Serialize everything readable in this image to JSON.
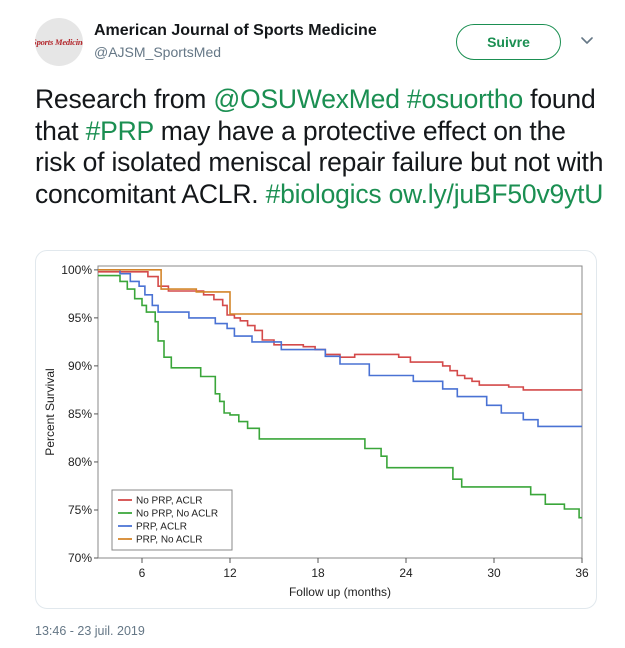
{
  "account": {
    "name": "American Journal of Sports Medicine",
    "handle": "@AJSM_SportsMed",
    "avatar_text": "Sports Medicine"
  },
  "follow_label": "Suivre",
  "tweet": {
    "t1": "Research from ",
    "l1": "@OSUWexMed",
    "t2": " ",
    "l2": "#osuortho",
    "t3": " found that ",
    "l3": "#PRP",
    "t4": " may have a protective effect on the risk of isolated meniscal repair failure but not with concomitant ACLR. ",
    "l4": "#biologics",
    "t5": " ",
    "l5": "ow.ly/juBF50v9ytU"
  },
  "timestamp": "13:46 - 23 juil. 2019",
  "colors": {
    "accent": "#1b8f52"
  },
  "chart_data": {
    "type": "line",
    "xlabel": "Follow up (months)",
    "ylabel": "Percent Survival",
    "xlim": [
      3,
      36
    ],
    "ylim": [
      70,
      100.4
    ],
    "xticks": [
      6,
      12,
      18,
      24,
      30,
      36
    ],
    "xtick_labels": [
      "6",
      "12",
      "18",
      "24",
      "30",
      "36"
    ],
    "yticks": [
      70,
      75,
      80,
      85,
      90,
      95,
      100
    ],
    "ytick_labels": [
      "70%",
      "75%",
      "80%",
      "85%",
      "90%",
      "95%",
      "100%"
    ],
    "legend_position": "bottom-left",
    "series": [
      {
        "name": "No PRP, ACLR",
        "color": "#d44a4a",
        "step_points": [
          [
            3,
            99.8
          ],
          [
            5.5,
            99.8
          ],
          [
            6.4,
            99.3
          ],
          [
            7.1,
            98.3
          ],
          [
            7.8,
            97.8
          ],
          [
            10.2,
            97.4
          ],
          [
            10.9,
            96.9
          ],
          [
            11.5,
            96.3
          ],
          [
            11.8,
            95.3
          ],
          [
            12.3,
            95.0
          ],
          [
            12.7,
            94.7
          ],
          [
            13.2,
            94.2
          ],
          [
            13.7,
            93.7
          ],
          [
            14.2,
            92.7
          ],
          [
            15.0,
            92.2
          ],
          [
            17.0,
            92.0
          ],
          [
            17.8,
            91.7
          ],
          [
            18.5,
            91.2
          ],
          [
            19.5,
            90.9
          ],
          [
            20.5,
            91.2
          ],
          [
            23.5,
            90.9
          ],
          [
            24.3,
            90.4
          ],
          [
            26.5,
            90.0
          ],
          [
            27.0,
            89.5
          ],
          [
            27.5,
            89.0
          ],
          [
            28.0,
            88.7
          ],
          [
            28.5,
            88.4
          ],
          [
            29.0,
            88.0
          ],
          [
            31.0,
            87.8
          ],
          [
            32.0,
            87.5
          ],
          [
            36,
            87.5
          ]
        ]
      },
      {
        "name": "No PRP, No ACLR",
        "color": "#3aa63a",
        "step_points": [
          [
            3,
            99.4
          ],
          [
            4.5,
            98.8
          ],
          [
            5.0,
            98.0
          ],
          [
            5.5,
            97.0
          ],
          [
            6.0,
            96.3
          ],
          [
            6.3,
            95.6
          ],
          [
            6.9,
            94.6
          ],
          [
            7.1,
            92.6
          ],
          [
            7.5,
            90.9
          ],
          [
            8.0,
            89.8
          ],
          [
            10.0,
            88.9
          ],
          [
            11.0,
            87.1
          ],
          [
            11.3,
            86.3
          ],
          [
            11.6,
            85.1
          ],
          [
            12.0,
            84.9
          ],
          [
            12.6,
            84.2
          ],
          [
            13.2,
            83.5
          ],
          [
            14.0,
            82.4
          ],
          [
            21.2,
            81.4
          ],
          [
            22.3,
            80.6
          ],
          [
            22.7,
            79.4
          ],
          [
            27.2,
            78.2
          ],
          [
            27.8,
            77.4
          ],
          [
            32.5,
            76.6
          ],
          [
            33.5,
            75.6
          ],
          [
            34.8,
            75.1
          ],
          [
            35.8,
            74.2
          ],
          [
            36,
            74.2
          ]
        ]
      },
      {
        "name": "PRP, ACLR",
        "color": "#4a72d4",
        "step_points": [
          [
            3,
            100.0
          ],
          [
            4.5,
            99.6
          ],
          [
            5.2,
            98.8
          ],
          [
            5.8,
            98.3
          ],
          [
            6.2,
            97.4
          ],
          [
            6.7,
            96.3
          ],
          [
            7.1,
            95.6
          ],
          [
            9.2,
            95.0
          ],
          [
            11.0,
            94.4
          ],
          [
            11.8,
            93.9
          ],
          [
            12.3,
            93.1
          ],
          [
            13.5,
            92.5
          ],
          [
            15.5,
            91.7
          ],
          [
            18.5,
            91.0
          ],
          [
            19.5,
            90.2
          ],
          [
            21.5,
            89.0
          ],
          [
            24.5,
            88.4
          ],
          [
            26.5,
            87.6
          ],
          [
            27.5,
            86.8
          ],
          [
            29.5,
            85.9
          ],
          [
            30.5,
            85.1
          ],
          [
            32.0,
            84.4
          ],
          [
            33.0,
            83.7
          ],
          [
            36,
            83.7
          ]
        ]
      },
      {
        "name": "PRP, No ACLR",
        "color": "#d4852a",
        "step_points": [
          [
            3,
            100.0
          ],
          [
            7.2,
            100.0
          ],
          [
            7.3,
            98.0
          ],
          [
            9.7,
            97.7
          ],
          [
            11.8,
            97.7
          ],
          [
            12.0,
            95.4
          ],
          [
            36,
            95.4
          ]
        ]
      }
    ]
  }
}
